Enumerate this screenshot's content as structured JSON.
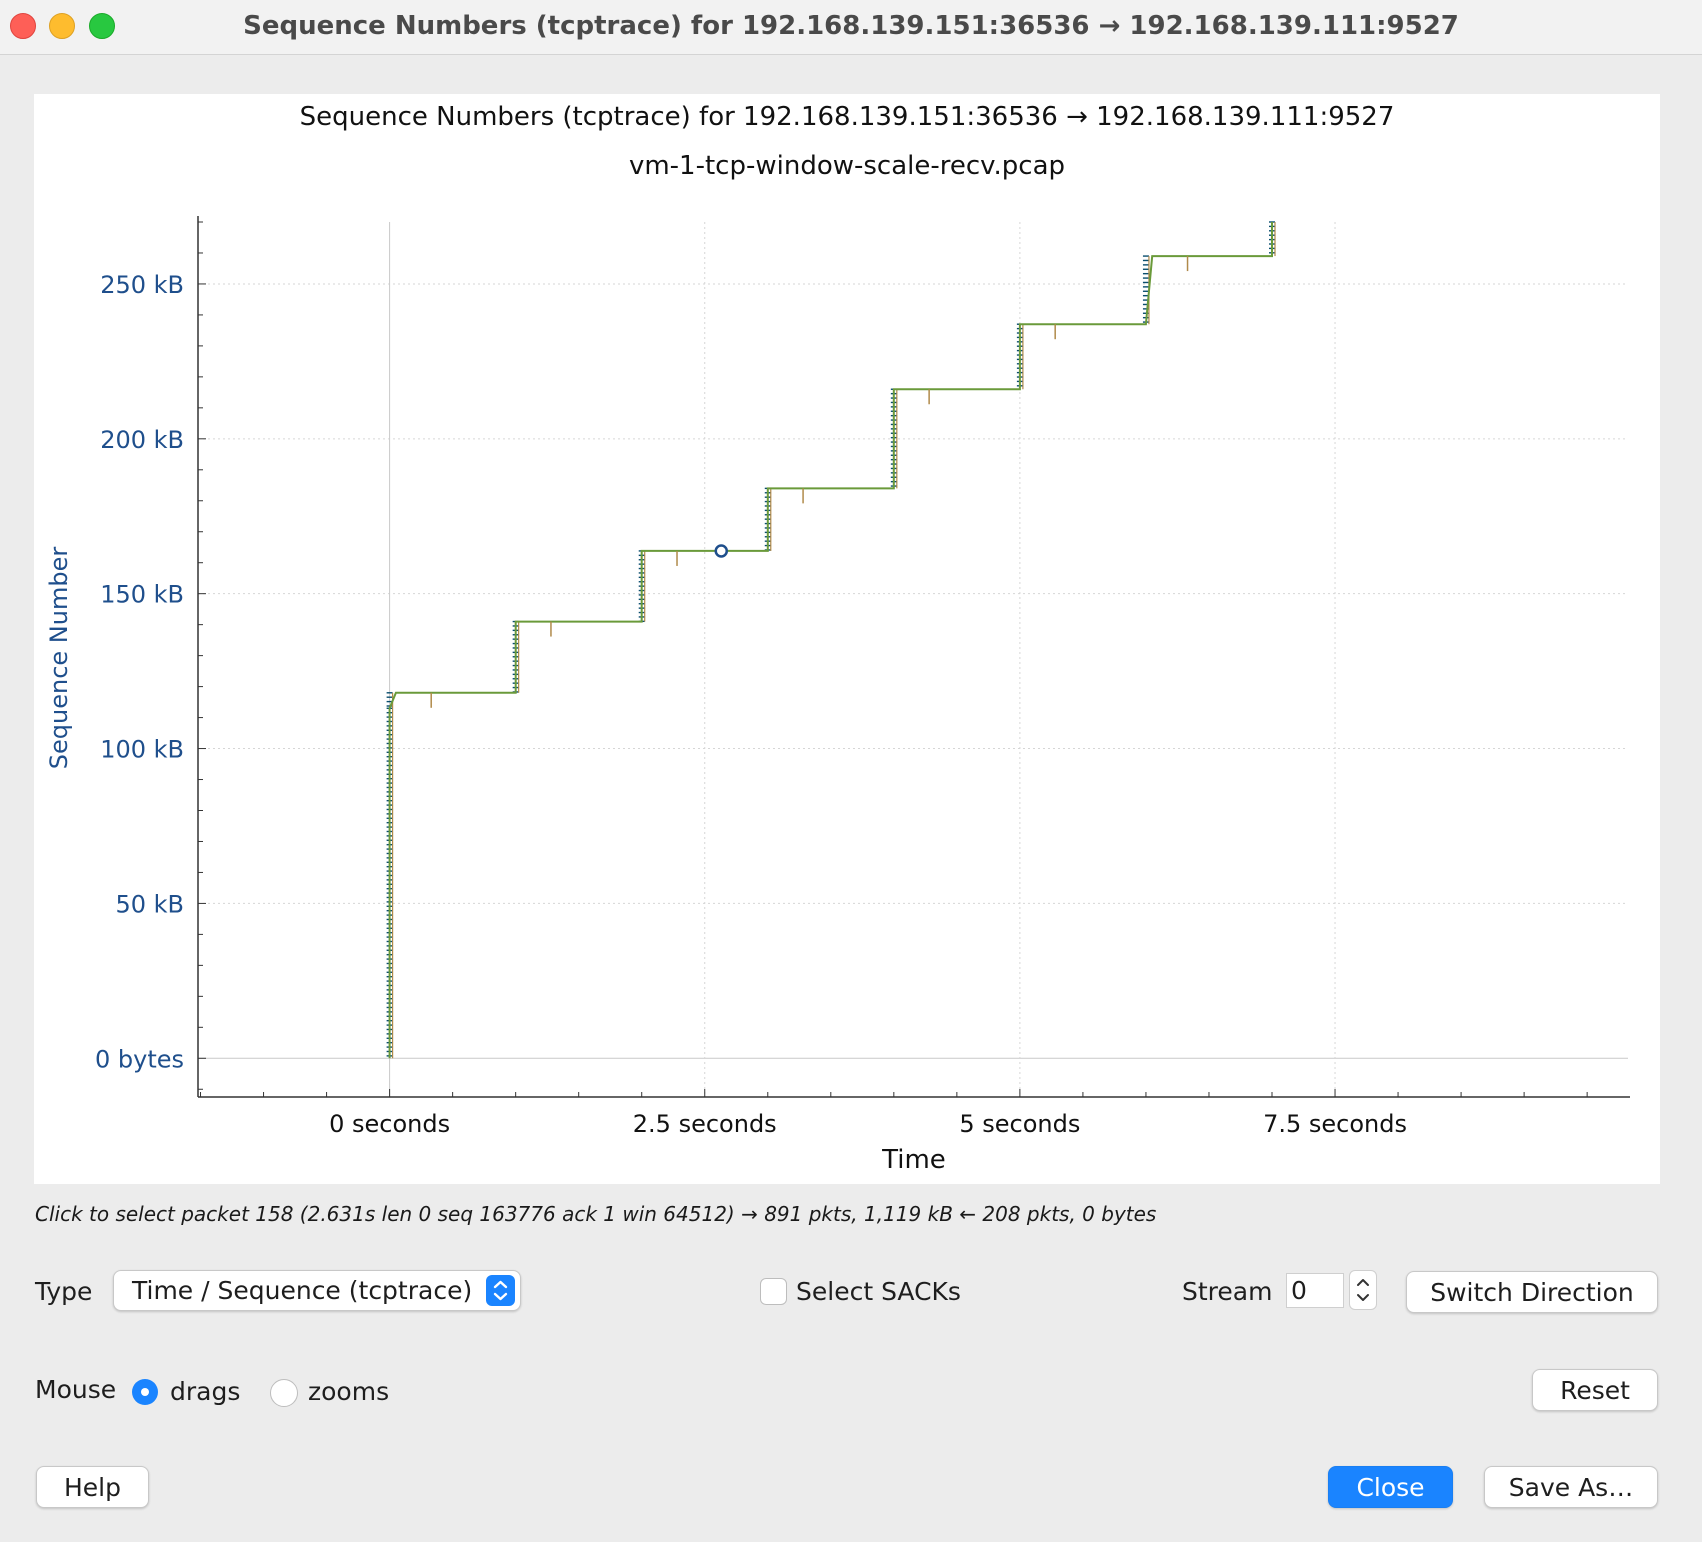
{
  "window": {
    "title": "Sequence Numbers (tcptrace) for 192.168.139.151:36536 → 192.168.139.111:9527"
  },
  "plot": {
    "title": "Sequence Numbers (tcptrace) for 192.168.139.151:36536 → 192.168.139.111:9527",
    "subtitle": "vm-1-tcp-window-scale-recv.pcap"
  },
  "chart_data": {
    "type": "line",
    "title": "Sequence Numbers (tcptrace) for 192.168.139.151:36536 → 192.168.139.111:9527",
    "subtitle": "vm-1-tcp-window-scale-recv.pcap",
    "xlabel": "Time",
    "ylabel": "Sequence Number",
    "x_ticks": [
      {
        "value": 0,
        "label": "0 seconds"
      },
      {
        "value": 2.5,
        "label": "2.5 seconds"
      },
      {
        "value": 5,
        "label": "5 seconds"
      },
      {
        "value": 7.5,
        "label": "7.5 seconds"
      }
    ],
    "y_ticks": [
      {
        "value": 0,
        "label": "0 bytes"
      },
      {
        "value": 50,
        "label": "50 kB"
      },
      {
        "value": 100,
        "label": "100 kB"
      },
      {
        "value": 150,
        "label": "150 kB"
      },
      {
        "value": 200,
        "label": "200 kB"
      },
      {
        "value": 250,
        "label": "250 kB"
      }
    ],
    "xlim": [
      -1.52,
      9.84
    ],
    "ylim": [
      -12.5,
      270
    ],
    "grid": true,
    "series": [
      {
        "values": [
          [
            0.0,
            0.0
          ],
          [
            0.0,
            113.0
          ],
          [
            0.05,
            118.0
          ],
          [
            1.0,
            118.0
          ],
          [
            1.0,
            141.0
          ],
          [
            2.0,
            141.0
          ],
          [
            2.0,
            163.8
          ],
          [
            3.0,
            163.8
          ],
          [
            3.0,
            184.0
          ],
          [
            4.0,
            184.0
          ],
          [
            4.0,
            216.0
          ],
          [
            5.0,
            216.0
          ],
          [
            5.0,
            237.0
          ],
          [
            6.0,
            237.0
          ],
          [
            6.05,
            259.0
          ],
          [
            7.0,
            259.0
          ],
          [
            7.0,
            270.0
          ]
        ]
      }
    ],
    "selected_point": {
      "x": 2.631,
      "y": 163.776
    }
  },
  "status_text": "Click to select packet 158 (2.631s len 0 seq 163776 ack 1 win 64512) → 891 pkts, 1,119 kB ← 208 pkts, 0 bytes",
  "controls": {
    "type_label": "Type",
    "type_value": "Time / Sequence (tcptrace)",
    "select_sacks_label": "Select SACKs",
    "select_sacks_checked": false,
    "stream_label": "Stream",
    "stream_value": "0",
    "switch_direction_label": "Switch Direction",
    "mouse_label": "Mouse",
    "mouse_drags_label": "drags",
    "mouse_zooms_label": "zooms",
    "mouse_mode": "drags",
    "reset_label": "Reset",
    "help_label": "Help",
    "close_label": "Close",
    "save_as_label": "Save As…"
  },
  "colors": {
    "sequence_line": "#6a9a3a",
    "segment_ticks": "#0a4e6e",
    "ack_marks": "#b08a4a",
    "axis_text": "#1f4f8c",
    "accent": "#1a84ff"
  }
}
